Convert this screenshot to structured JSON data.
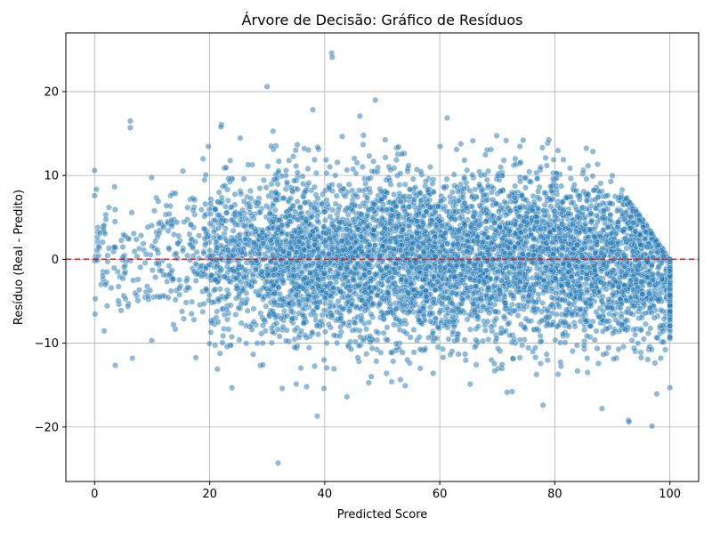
{
  "chart_data": {
    "type": "scatter",
    "title": "Árvore de Decisão: Gráfico de Resíduos",
    "xlabel": "Predicted Score",
    "ylabel": "Resíduo (Real - Predito)",
    "xlim": [
      -5,
      105
    ],
    "ylim": [
      -26.5,
      27
    ],
    "xticks": [
      0,
      20,
      40,
      60,
      80,
      100
    ],
    "yticks": [
      -20,
      -10,
      0,
      10,
      20
    ],
    "xtick_labels": [
      "0",
      "20",
      "40",
      "60",
      "80",
      "100"
    ],
    "ytick_labels": [
      "−20",
      "−10",
      "0",
      "10",
      "20"
    ],
    "grid": true,
    "reference_line": {
      "y": 0,
      "style": "dashed",
      "color": "#d62728"
    },
    "point_color": "#1f77b4",
    "point_opacity": 0.5,
    "approx_point_count": 6000,
    "notable_points": [
      {
        "x": 41.2,
        "y": 24.6
      },
      {
        "x": 41.3,
        "y": 24.1
      },
      {
        "x": 30.0,
        "y": 20.6
      },
      {
        "x": 48.8,
        "y": 19.0
      },
      {
        "x": 31.9,
        "y": -24.3
      },
      {
        "x": 38.7,
        "y": -18.7
      },
      {
        "x": 96.9,
        "y": -19.9
      },
      {
        "x": 92.8,
        "y": -19.2
      },
      {
        "x": 92.9,
        "y": -19.4
      },
      {
        "x": 88.2,
        "y": -17.8
      },
      {
        "x": 0.0,
        "y": 10.6
      },
      {
        "x": 0.0,
        "y": 7.6
      },
      {
        "x": 6.2,
        "y": 16.5
      },
      {
        "x": 6.2,
        "y": 15.7
      },
      {
        "x": 100.0,
        "y": -15.3
      }
    ],
    "distribution_by_x": [
      {
        "x_range": [
          0,
          10
        ],
        "y_min": -8,
        "y_max": 11,
        "density": "low"
      },
      {
        "x_range": [
          10,
          20
        ],
        "y_min": -12,
        "y_max": 15,
        "density": "low"
      },
      {
        "x_range": [
          20,
          30
        ],
        "y_min": -14,
        "y_max": 18,
        "density": "medium"
      },
      {
        "x_range": [
          30,
          90
        ],
        "y_min": -17,
        "y_max": 18,
        "density": "high"
      },
      {
        "x_range": [
          90,
          100
        ],
        "y_min": -20,
        "y_max": 9,
        "density": "high",
        "upper_bound_note": "residual ≤ 100 − predicted"
      }
    ]
  }
}
